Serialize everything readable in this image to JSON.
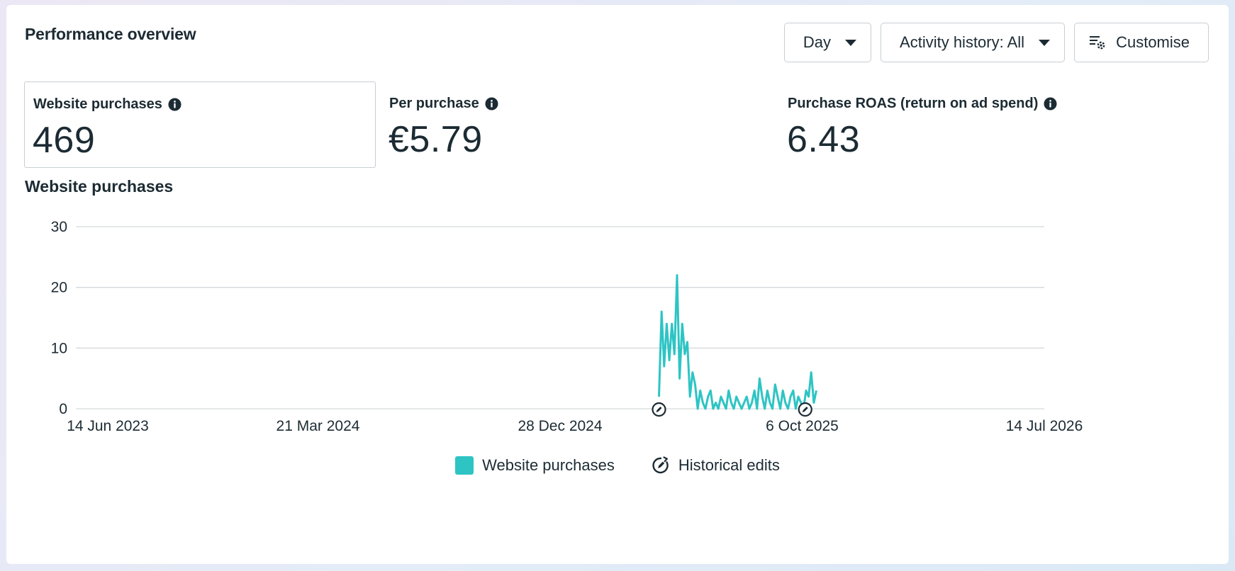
{
  "header": {
    "title": "Performance overview",
    "day_label": "Day",
    "activity_label": "Activity history: All",
    "customise_label": "Customise"
  },
  "metrics": [
    {
      "label": "Website purchases",
      "value": "469",
      "selected": true
    },
    {
      "label": "Per purchase",
      "value": "€5.79",
      "selected": false
    },
    {
      "label": "Purchase ROAS (return on ad spend)",
      "value": "6.43",
      "selected": false
    }
  ],
  "chart_title": "Website purchases",
  "legend": {
    "series_label": "Website purchases",
    "edits_label": "Historical edits"
  },
  "colors": {
    "series": "#2ec4c4",
    "grid": "#d5d9dc",
    "text": "#1c2b33"
  },
  "chart_data": {
    "type": "line",
    "title": "Website purchases",
    "xlabel": "",
    "ylabel": "",
    "ylim": [
      0,
      30
    ],
    "yticks": [
      0,
      10,
      20,
      30
    ],
    "xlim": [
      "2023-06-14",
      "2026-07-14"
    ],
    "xticks": [
      "14 Jun 2023",
      "21 Mar 2024",
      "28 Dec 2024",
      "6 Oct 2025",
      "14 Jul 2026"
    ],
    "grid": true,
    "legend_position": "bottom-center",
    "series": [
      {
        "name": "Website purchases",
        "start_date": "2025-04-22",
        "interval_days": 3,
        "values": [
          2,
          16,
          7,
          14,
          8,
          14,
          9,
          22,
          5,
          14,
          9,
          11,
          2,
          6,
          4,
          0,
          3,
          1,
          0,
          2,
          3,
          0,
          1,
          0,
          2,
          1,
          0,
          3,
          1,
          0,
          2,
          1,
          0,
          1,
          2,
          0,
          1,
          3,
          0,
          5,
          2,
          0,
          3,
          1,
          0,
          4,
          2,
          0,
          3,
          1,
          0,
          2,
          3,
          0,
          2,
          1,
          0,
          3,
          2,
          6,
          1,
          3
        ]
      }
    ],
    "historical_edits": [
      "2025-04-22",
      "2025-10-09"
    ]
  }
}
